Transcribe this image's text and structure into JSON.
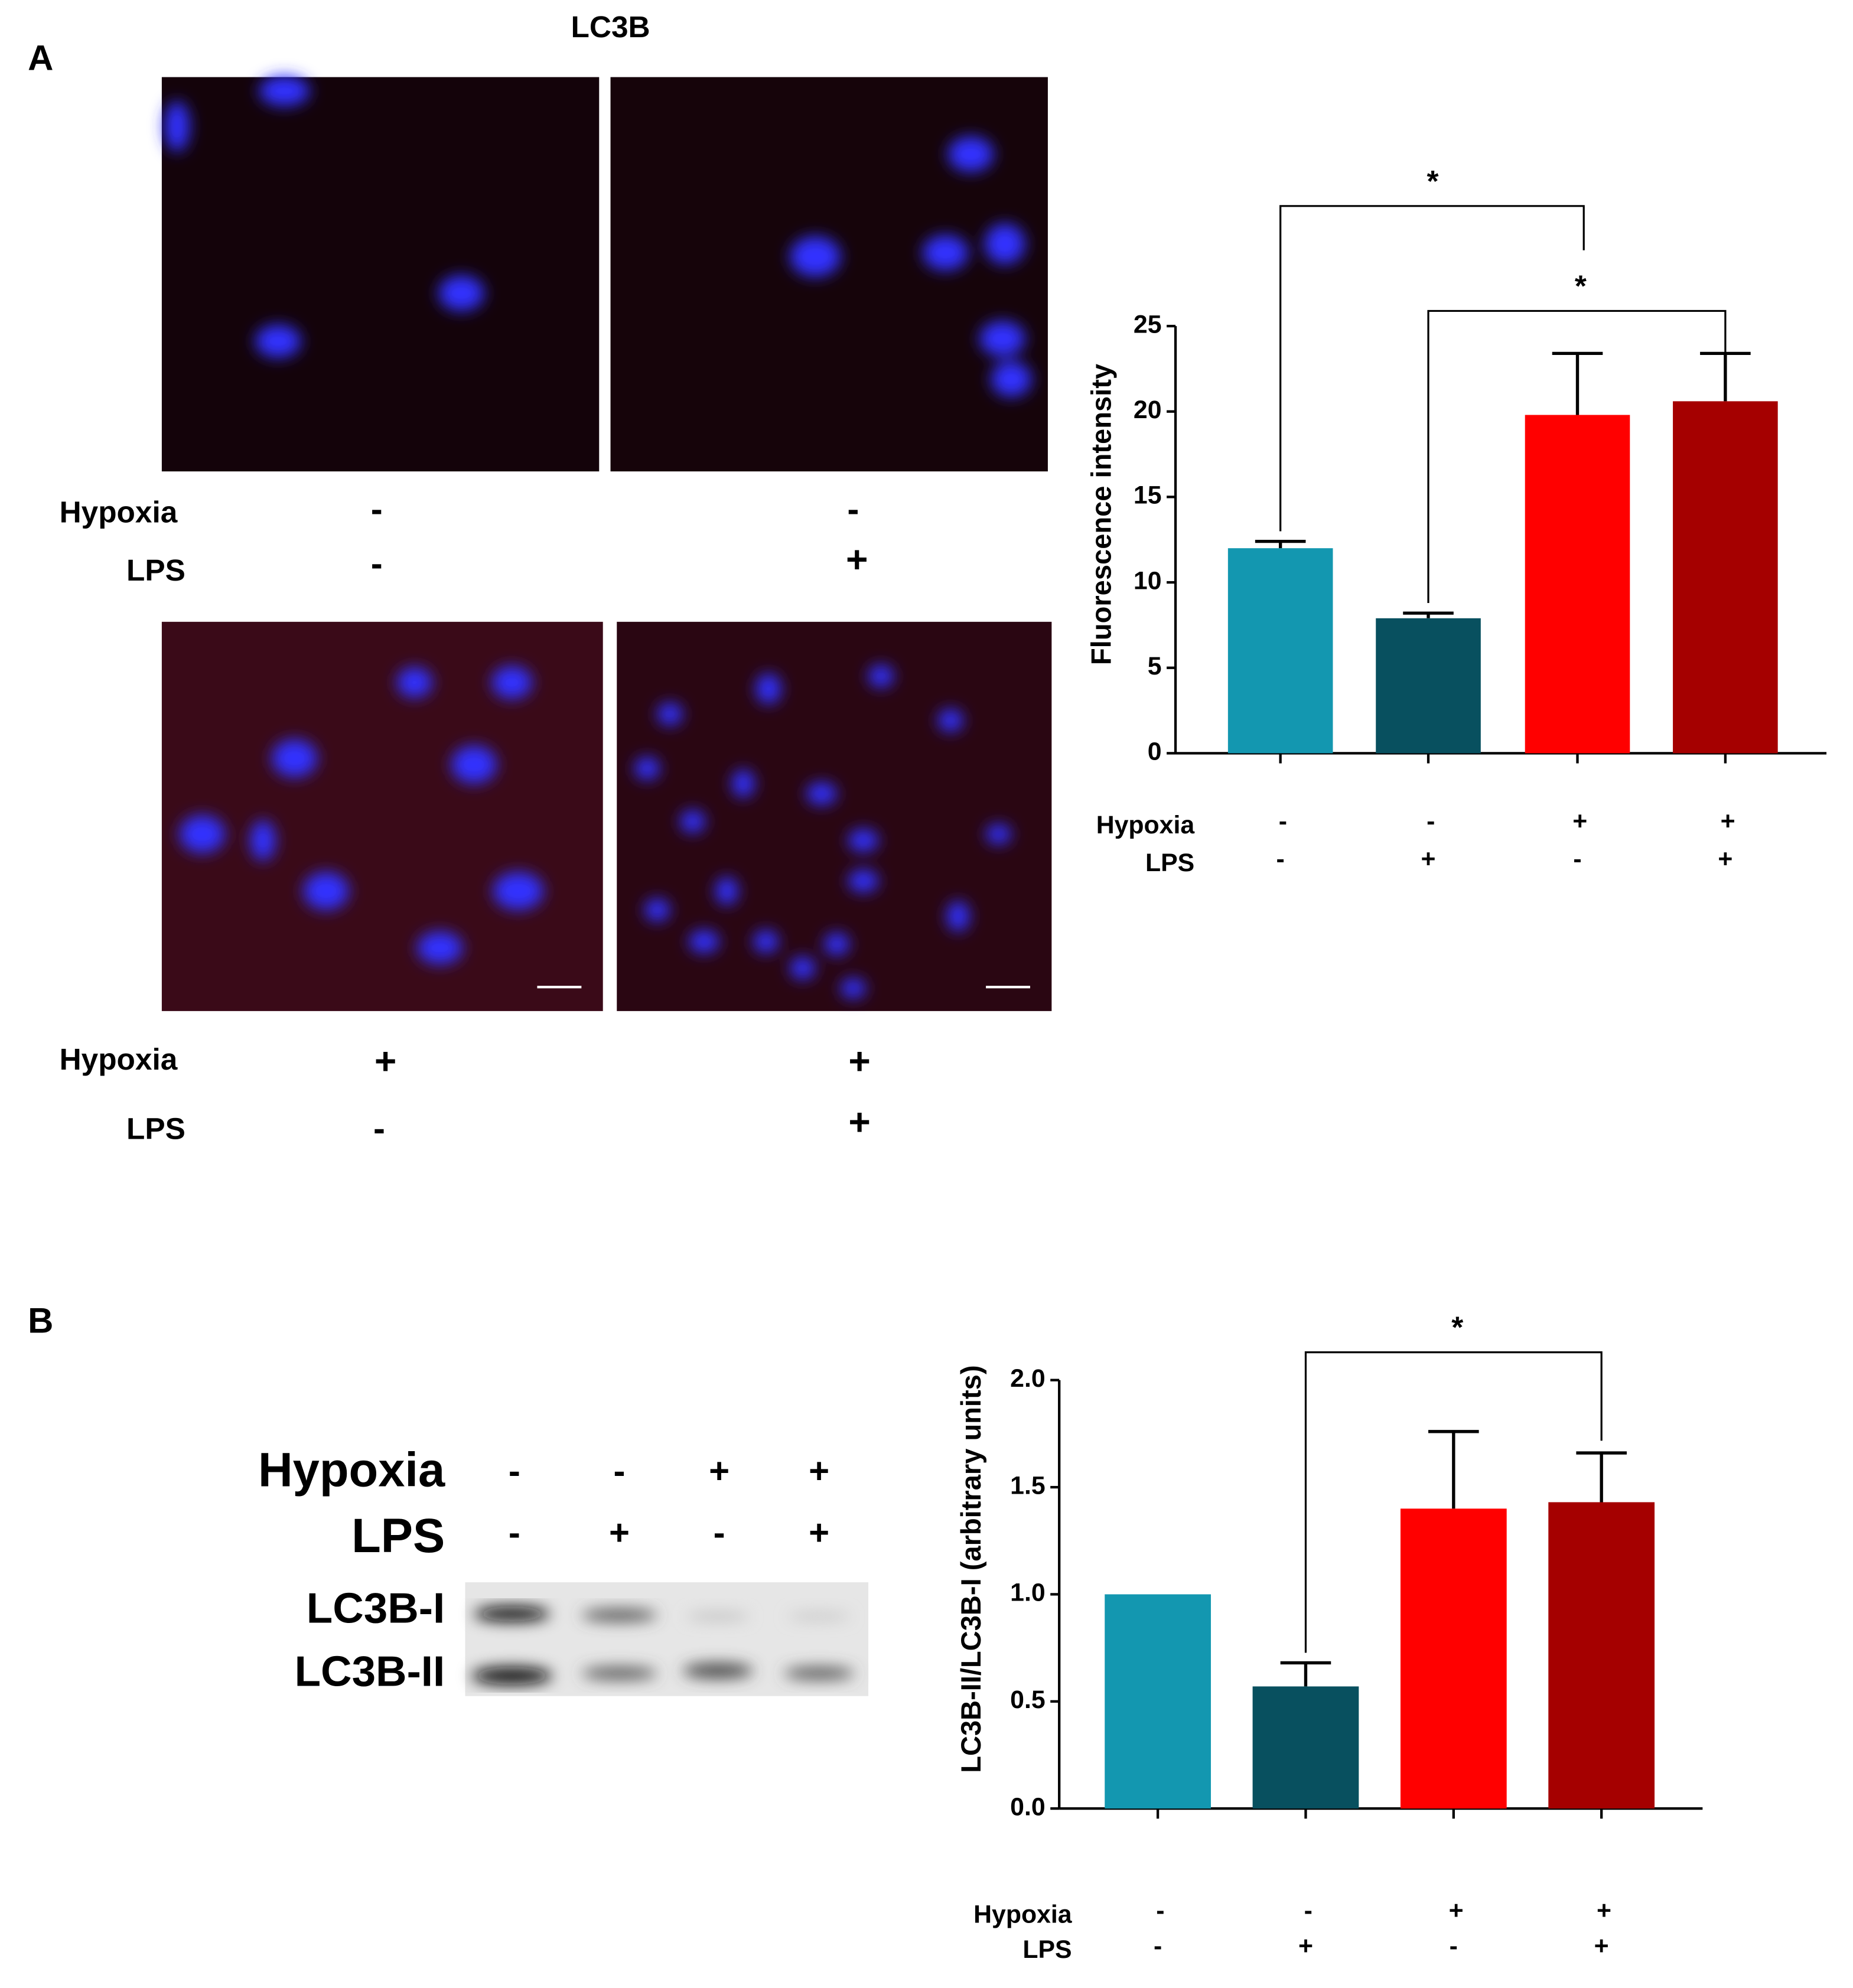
{
  "panel_a": {
    "label": "A",
    "title": "LC3B",
    "rows": [
      {
        "hypoxia_label": "Hypoxia",
        "lps_label": "LPS",
        "hypoxia": [
          "-",
          "-"
        ],
        "lps": [
          "-",
          "+"
        ]
      },
      {
        "hypoxia_label": "Hypoxia",
        "lps_label": "LPS",
        "hypoxia": [
          "+",
          "+"
        ],
        "lps": [
          "-",
          "+"
        ]
      }
    ]
  },
  "panel_b": {
    "label": "B",
    "blot": {
      "hypoxia_label": "Hypoxia",
      "lps_label": "LPS",
      "hypoxia": [
        "-",
        "-",
        "+",
        "+"
      ],
      "lps": [
        "-",
        "+",
        "-",
        "+"
      ],
      "bands": [
        "LC3B-I",
        "LC3B-II"
      ]
    }
  },
  "chart_data": [
    {
      "type": "bar",
      "ylabel": "Fluorescence intensity",
      "values": [
        12,
        7.9,
        19.8,
        20.6
      ],
      "errors": [
        0.4,
        0.3,
        3.6,
        2.8
      ],
      "colors": [
        "#1397b0",
        "#08505f",
        "#ff0000",
        "#a50000"
      ],
      "ylim": [
        0,
        25
      ],
      "yticks": [
        0,
        5,
        10,
        15,
        20,
        25
      ],
      "conditions": {
        "labels": [
          "Hypoxia",
          "LPS"
        ],
        "rows": [
          [
            "-",
            "-",
            "+",
            "+"
          ],
          [
            "-",
            "+",
            "-",
            "+"
          ]
        ]
      },
      "significance": [
        {
          "pair": [
            0,
            2
          ],
          "label": "*"
        },
        {
          "pair": [
            1,
            3
          ],
          "label": "*"
        }
      ]
    },
    {
      "type": "bar",
      "ylabel": "LC3B-II/LC3B-I (arbitrary units)",
      "values": [
        1.0,
        0.57,
        1.4,
        1.43
      ],
      "errors": [
        null,
        0.11,
        0.36,
        0.23
      ],
      "colors": [
        "#1397b0",
        "#08505f",
        "#ff0000",
        "#a50000"
      ],
      "ylim": [
        0,
        2
      ],
      "yticks": [
        {
          "value": 0,
          "label": "0.0"
        },
        {
          "value": 0.5,
          "label": "0.5"
        },
        {
          "value": 1,
          "label": "1.0"
        },
        {
          "value": 1.5,
          "label": "1.5"
        },
        {
          "value": 2,
          "label": "2.0"
        }
      ],
      "conditions": {
        "labels": [
          "Hypoxia",
          "LPS"
        ],
        "rows": [
          [
            "-",
            "-",
            "+",
            "+"
          ],
          [
            "-",
            "+",
            "-",
            "+"
          ]
        ]
      },
      "significance": [
        {
          "pair": [
            1,
            3
          ],
          "label": "*"
        }
      ]
    }
  ]
}
